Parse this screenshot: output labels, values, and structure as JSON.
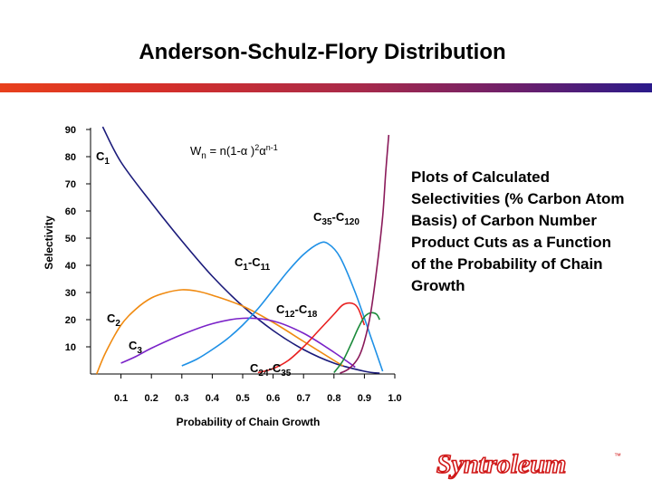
{
  "slide": {
    "title": "Anderson-Schulz-Flory Distribution",
    "side_note": "Plots of Calculated Selectivities (% Carbon Atom Basis) of Carbon Number Product Cuts as a Function of the Probability of Chain Growth",
    "logo_text": "Syntroleum",
    "logo_mark": "™"
  },
  "chart_data": {
    "type": "line",
    "xlabel": "Probability of Chain Growth",
    "ylabel": "Selectivity",
    "xlim": [
      0.0,
      1.0
    ],
    "ylim": [
      0,
      90
    ],
    "x_ticks": [
      "0.1",
      "0.2",
      "0.3",
      "0.4",
      "0.5",
      "0.6",
      "0.7",
      "0.8",
      "0.9",
      "1.0"
    ],
    "y_ticks": [
      "10",
      "20",
      "30",
      "40",
      "50",
      "60",
      "70",
      "80",
      "90"
    ],
    "formula": {
      "main": "W",
      "main_sub": "n",
      "eq": " = n(1-",
      "alpha": "α",
      "close": " )",
      "sq": "2",
      "alpha2": "α",
      "exp": "n-1"
    },
    "grid": false,
    "series": [
      {
        "name": "C1",
        "label_main": "C",
        "label_sub": "1",
        "color": "#1a1a7a",
        "x": [
          0.04,
          0.1,
          0.2,
          0.3,
          0.4,
          0.5,
          0.6,
          0.7,
          0.8,
          0.9,
          0.95
        ],
        "y": [
          91,
          78,
          63,
          49,
          36,
          25,
          16,
          9,
          4,
          1,
          0.3
        ]
      },
      {
        "name": "C2",
        "label_main": "C",
        "label_sub": "2",
        "color": "#f08a10",
        "x": [
          0.02,
          0.05,
          0.1,
          0.15,
          0.2,
          0.25,
          0.3,
          0.35,
          0.4,
          0.5,
          0.6,
          0.7,
          0.8,
          0.83
        ],
        "y": [
          0,
          8,
          18,
          24,
          28,
          30,
          31,
          30.5,
          29,
          25,
          19,
          12,
          5,
          3
        ]
      },
      {
        "name": "C3",
        "label_main": "C",
        "label_sub": "3",
        "color": "#7a22c8",
        "x": [
          0.1,
          0.15,
          0.2,
          0.3,
          0.4,
          0.5,
          0.6,
          0.7,
          0.8,
          0.87
        ],
        "y": [
          4,
          6.5,
          9.5,
          14.5,
          18.5,
          20.5,
          19.5,
          15,
          8,
          2.5
        ]
      },
      {
        "name": "C1-C11",
        "label_main": "C",
        "label_sub": "1",
        "label_mid": "-C",
        "label_sub2": "11",
        "color": "#1e90e6",
        "x": [
          0.3,
          0.35,
          0.4,
          0.45,
          0.5,
          0.55,
          0.6,
          0.65,
          0.7,
          0.75,
          0.78,
          0.82,
          0.87,
          0.92,
          0.96
        ],
        "y": [
          3,
          5.5,
          9,
          13,
          18,
          24,
          31,
          38,
          44,
          48,
          48,
          43,
          30,
          14,
          1
        ]
      },
      {
        "name": "C12-C18",
        "label_main": "C",
        "label_sub": "12",
        "label_mid": "-C",
        "label_sub2": "18",
        "color": "#e82020",
        "x": [
          0.55,
          0.6,
          0.65,
          0.7,
          0.75,
          0.8,
          0.83,
          0.86,
          0.88,
          0.9
        ],
        "y": [
          0.5,
          2,
          5,
          10,
          16,
          22,
          25.5,
          26,
          24,
          18
        ]
      },
      {
        "name": "C24-C35",
        "label_main": "C",
        "label_sub": "24",
        "label_mid": "-C",
        "label_sub2": "35",
        "color": "#1a8a3a",
        "x": [
          0.8,
          0.83,
          0.86,
          0.88,
          0.9,
          0.92,
          0.94,
          0.95
        ],
        "y": [
          0.5,
          5,
          12,
          17,
          21,
          22.5,
          22,
          20
        ]
      },
      {
        "name": "C35-C120",
        "label_main": "C",
        "label_sub": "35",
        "label_mid": "-C",
        "label_sub2": "120",
        "color": "#8a1a5a",
        "x": [
          0.82,
          0.85,
          0.88,
          0.9,
          0.92,
          0.94,
          0.96,
          0.97,
          0.98
        ],
        "y": [
          0.3,
          2,
          6,
          12,
          22,
          38,
          58,
          74,
          88
        ]
      }
    ]
  }
}
